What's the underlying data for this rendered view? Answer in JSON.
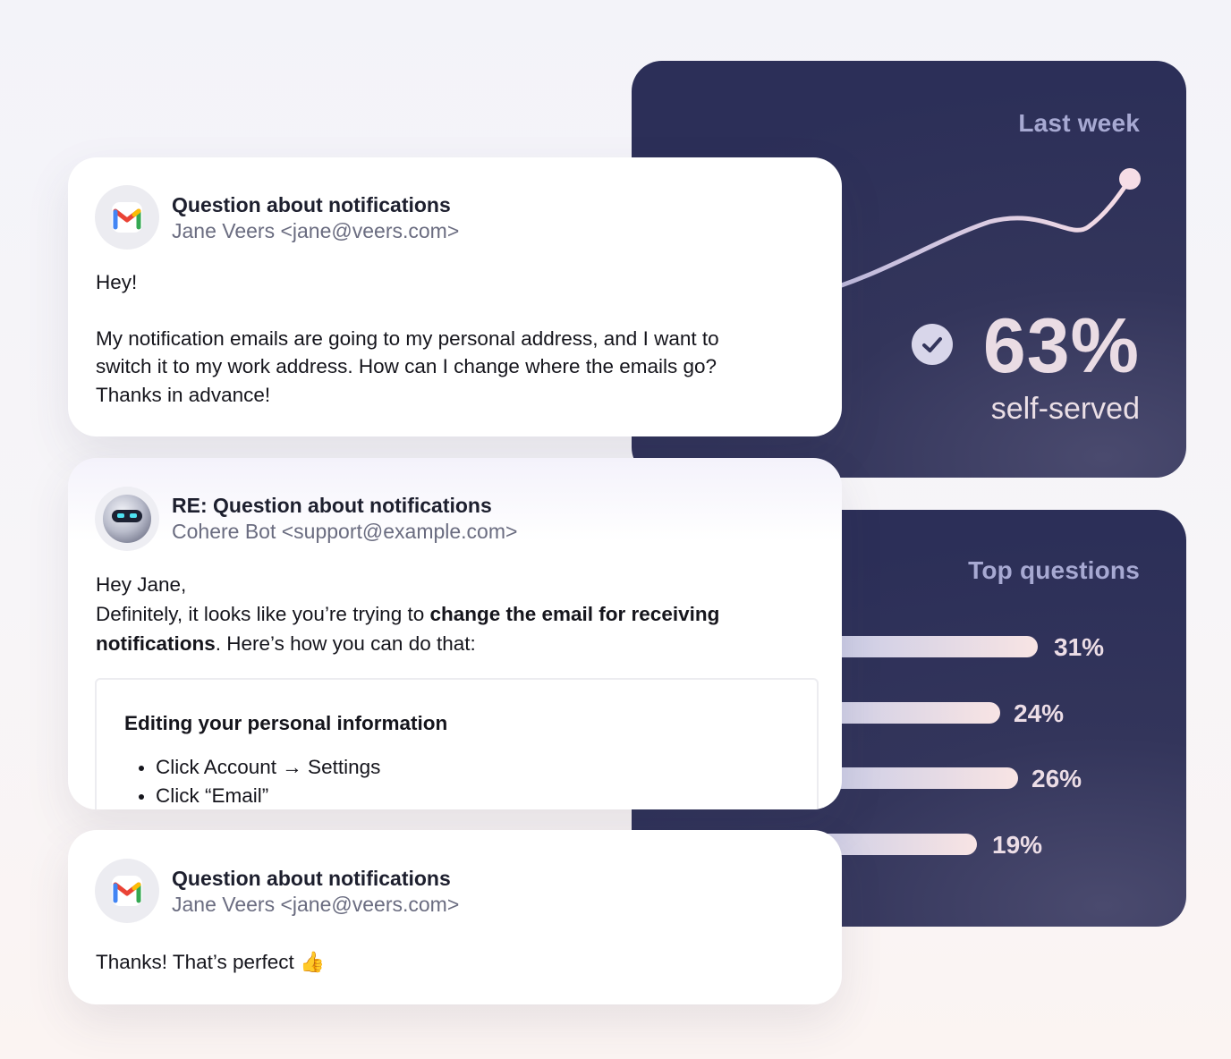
{
  "stats": {
    "heading": "Last week",
    "percentage": "63%",
    "label": "self-served",
    "trend_icon": "check-circle-icon"
  },
  "top_questions": {
    "heading": "Top questions",
    "items": [
      {
        "label": "31%",
        "value": 0.31
      },
      {
        "label": "24%",
        "value": 0.24
      },
      {
        "label": "26%",
        "value": 0.26
      },
      {
        "label": "19%",
        "value": 0.19
      }
    ]
  },
  "emails": [
    {
      "avatar_icon": "gmail-icon",
      "subject": "Question about notifications",
      "sender": "Jane Veers <jane@veers.com>",
      "greeting": "Hey!",
      "lines": [
        "My notification emails are going to my personal address, and I want to",
        "switch it to my work address. How can I change where the emails go?",
        "Thanks in advance!"
      ]
    },
    {
      "avatar_icon": "robot-icon",
      "subject": "RE: Question about notifications",
      "sender": "Cohere Bot <support@example.com>",
      "greeting": "Hey Jane,",
      "line1_prefix": "Definitely, it looks like you’re trying to ",
      "line1_strong": "change the email for receiving",
      "line2_strong": "notifications",
      "line2_suffix": ". Here’s how you can do that:",
      "box_title": "Editing your personal information",
      "steps": [
        "Click Account → Settings",
        "Click “Email”"
      ]
    },
    {
      "avatar_icon": "gmail-icon",
      "subject": "Question about notifications",
      "sender": "Jane Veers <jane@veers.com>",
      "text": "Thanks! That’s perfect",
      "emoji": "👍",
      "emoji_icon": "thumbs-up-icon"
    }
  ],
  "colors": {
    "panel": "#2c2f58",
    "panel_heading": "#a7a9d2",
    "accent_text": "#eadce4"
  }
}
